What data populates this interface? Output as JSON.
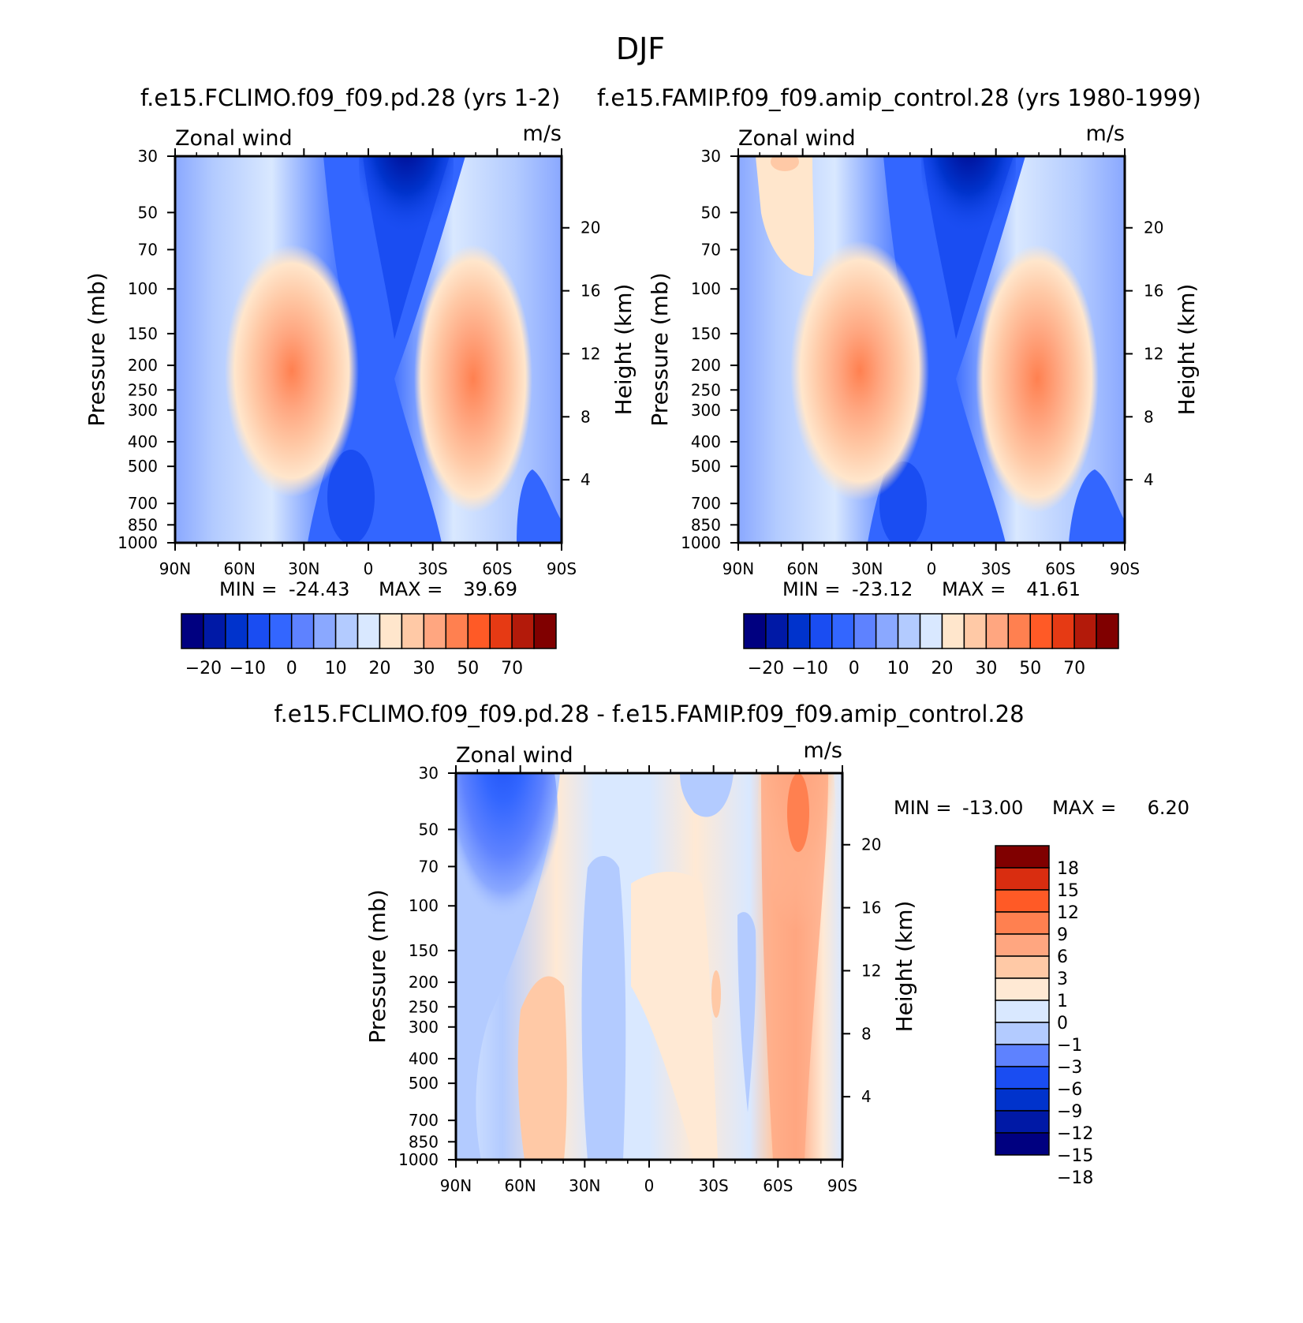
{
  "page": {
    "title": "DJF"
  },
  "colors": {
    "abs_palette": [
      "#000080",
      "#0019a6",
      "#0033cc",
      "#1a4df2",
      "#3366ff",
      "#5e82ff",
      "#8aa8ff",
      "#b3cbff",
      "#d9e8ff",
      "#ffe6cc",
      "#ffc9a6",
      "#ffa680",
      "#ff8050",
      "#ff5a26",
      "#e63a14",
      "#b31a0a",
      "#800000"
    ],
    "diff_palette": [
      "#000080",
      "#0019a6",
      "#0033cc",
      "#1a4df2",
      "#5e82ff",
      "#b3cbff",
      "#d9e8ff",
      "#ffe9d4",
      "#ffc9a6",
      "#ffa680",
      "#ff8050",
      "#ff5a26",
      "#d92d10",
      "#800000"
    ],
    "axis": "#000000"
  },
  "chart_data": [
    {
      "type": "contour",
      "panel": "left",
      "header": "f.e15.FCLIMO.f09_f09.pd.28 (yrs 1-2)",
      "title_left": "Zonal wind",
      "title_right": "m/s",
      "ylabel": "Pressure (mb)",
      "ylabel_right": "Height (km)",
      "x_ticks": [
        "90N",
        "60N",
        "30N",
        "0",
        "30S",
        "60S",
        "90S"
      ],
      "y_ticks": [
        "30",
        "50",
        "70",
        "100",
        "150",
        "200",
        "250",
        "300",
        "400",
        "500",
        "700",
        "850",
        "1000"
      ],
      "height_ticks": [
        "20",
        "16",
        "12",
        "8",
        "4"
      ],
      "stats": {
        "min_label": "MIN =",
        "min": "-24.43",
        "max_label": "MAX =",
        "max": "39.69"
      },
      "colorbar_labels": [
        "-20",
        "-10",
        "0",
        "10",
        "20",
        "30",
        "50",
        "70"
      ],
      "jets": [
        {
          "lat": 30,
          "pressure": 200,
          "peak": 39.69
        },
        {
          "lat": -50,
          "pressure": 250,
          "peak": 35
        }
      ]
    },
    {
      "type": "contour",
      "panel": "right",
      "header": "f.e15.FAMIP.f09_f09.amip_control.28 (yrs 1980-1999)",
      "title_left": "Zonal wind",
      "title_right": "m/s",
      "ylabel": "Pressure (mb)",
      "ylabel_right": "Height (km)",
      "x_ticks": [
        "90N",
        "60N",
        "30N",
        "0",
        "30S",
        "60S",
        "90S"
      ],
      "y_ticks": [
        "30",
        "50",
        "70",
        "100",
        "150",
        "200",
        "250",
        "300",
        "400",
        "500",
        "700",
        "850",
        "1000"
      ],
      "height_ticks": [
        "20",
        "16",
        "12",
        "8",
        "4"
      ],
      "stats": {
        "min_label": "MIN =",
        "min": "-23.12",
        "max_label": "MAX =",
        "max": "41.61"
      },
      "colorbar_labels": [
        "-20",
        "-10",
        "0",
        "10",
        "20",
        "30",
        "50",
        "70"
      ],
      "jets": [
        {
          "lat": 30,
          "pressure": 200,
          "peak": 41.61
        },
        {
          "lat": -50,
          "pressure": 250,
          "peak": 36
        }
      ]
    },
    {
      "type": "contour",
      "panel": "difference",
      "header": "f.e15.FCLIMO.f09_f09.pd.28 - f.e15.FAMIP.f09_f09.amip_control.28",
      "title_left": "Zonal wind",
      "title_right": "m/s",
      "ylabel": "Pressure (mb)",
      "ylabel_right": "Height (km)",
      "x_ticks": [
        "90N",
        "60N",
        "30N",
        "0",
        "30S",
        "60S",
        "90S"
      ],
      "y_ticks": [
        "30",
        "50",
        "70",
        "100",
        "150",
        "200",
        "250",
        "300",
        "400",
        "500",
        "700",
        "850",
        "1000"
      ],
      "height_ticks": [
        "20",
        "16",
        "12",
        "8",
        "4"
      ],
      "stats": {
        "min_label": "MIN =",
        "min": "-13.00",
        "max_label": "MAX =",
        "max": "6.20"
      },
      "colorbar_labels": [
        "18",
        "15",
        "12",
        "9",
        "6",
        "3",
        "1",
        "0",
        "-1",
        "-3",
        "-6",
        "-9",
        "-12",
        "-15",
        "-18"
      ]
    }
  ]
}
